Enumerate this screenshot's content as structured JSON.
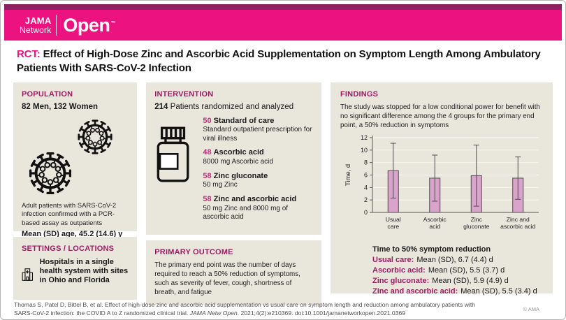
{
  "colors": {
    "banner_pink": "#ec1380",
    "top_strip": "#8c2062",
    "section_header": "#9d1d64",
    "accent_number": "#bf2f7e",
    "panel_bg": "#e9e6dc",
    "bar_fill": "#d9a3cb",
    "bar_stroke": "#4d4d4d",
    "axis_color": "#555555",
    "grid_color": "#f7f5ee"
  },
  "header": {
    "brand_line1": "JAMA",
    "brand_line2": "Network",
    "brand_product": "Open",
    "trademark": "™"
  },
  "title": {
    "tag": "RCT:",
    "text": "Effect of High-Dose Zinc and Ascorbic Acid Supplementation on Symptom Length Among Ambulatory Patients With SARS-CoV-2 Infection"
  },
  "population": {
    "heading": "POPULATION",
    "counts": "82 Men, 132 Women",
    "description": "Adult patients with SARS-CoV-2 infection confirmed with a PCR-based assay as outpatients",
    "age": "Mean (SD) age, 45.2 (14.6) y"
  },
  "settings": {
    "heading": "SETTINGS / LOCATIONS",
    "description": "Hospitals in a single health system with sites in Ohio and Florida"
  },
  "intervention": {
    "heading": "INTERVENTION",
    "total": "214",
    "total_label": "Patients randomized and analyzed",
    "arms": [
      {
        "n": "50",
        "name": "Standard of care",
        "detail": "Standard outpatient prescription for viral illness"
      },
      {
        "n": "48",
        "name": "Ascorbic acid",
        "detail": "8000 mg Ascorbic acid"
      },
      {
        "n": "58",
        "name": "Zinc gluconate",
        "detail": "50 mg Zinc"
      },
      {
        "n": "58",
        "name": "Zinc and ascorbic acid",
        "detail": "50 mg Zinc and 8000 mg of ascorbic acid"
      }
    ]
  },
  "primary_outcome": {
    "heading": "PRIMARY OUTCOME",
    "text": "The primary end point was the number of days required to reach a 50% reduction of symptoms, such as severity of fever, cough, shortness of breath, and fatigue"
  },
  "findings": {
    "heading": "FINDINGS",
    "summary": "The study was stopped for a low conditional power for benefit with no significant difference among the 4 groups for the primary end point, a 50% reduction in symptoms",
    "results_title": "Time to 50% symptom reduction",
    "results": [
      {
        "label": "Usual care:",
        "value": "Mean (SD), 6.7 (4.4) d"
      },
      {
        "label": "Ascorbic acid:",
        "value": "Mean (SD), 5.5 (3.7) d"
      },
      {
        "label": "Zinc gluconate:",
        "value": "Mean (SD), 5.9 (4.9) d"
      },
      {
        "label": "Zinc and ascorbic acid:",
        "value": "Mean (SD), 5.5 (3.4) d"
      }
    ]
  },
  "chart_data": {
    "type": "bar",
    "title": "",
    "xlabel": "",
    "ylabel": "Time, d",
    "ylim": [
      0,
      12
    ],
    "yticks": [
      0,
      2,
      4,
      6,
      8,
      10,
      12
    ],
    "grid": true,
    "legend": "none",
    "error_bars": "mean ± SD",
    "categories": [
      "Usual care",
      "Ascorbic acid",
      "Zinc gluconate",
      "Zinc and ascorbic acid"
    ],
    "category_label_lines": [
      [
        "Usual",
        "care"
      ],
      [
        "Ascorbic",
        "acid"
      ],
      [
        "Zinc",
        "gluconate"
      ],
      [
        "Zinc and",
        "ascorbic acid"
      ]
    ],
    "series": [
      {
        "name": "Usual care",
        "mean": 6.7,
        "sd": 4.4
      },
      {
        "name": "Ascorbic acid",
        "mean": 5.5,
        "sd": 3.7
      },
      {
        "name": "Zinc gluconate",
        "mean": 5.9,
        "sd": 4.9
      },
      {
        "name": "Zinc and ascorbic acid",
        "mean": 5.5,
        "sd": 3.4
      }
    ]
  },
  "footer": {
    "citation_before_journal": "Thomas S, Patel D, Bittel B, et al. Effect of high-dose zinc and ascorbic acid supplementation vs usual care on symptom length and reduction among ambulatory patients with SARS-CoV-2 infection: the COVID A to Z randomized clinical trial.",
    "journal": "JAMA Netw Open",
    "citation_after_journal": ". 2021;4(2):e210369. doi:10.1001/jamanetworkopen.2021.0369",
    "copyright": "© AMA"
  }
}
